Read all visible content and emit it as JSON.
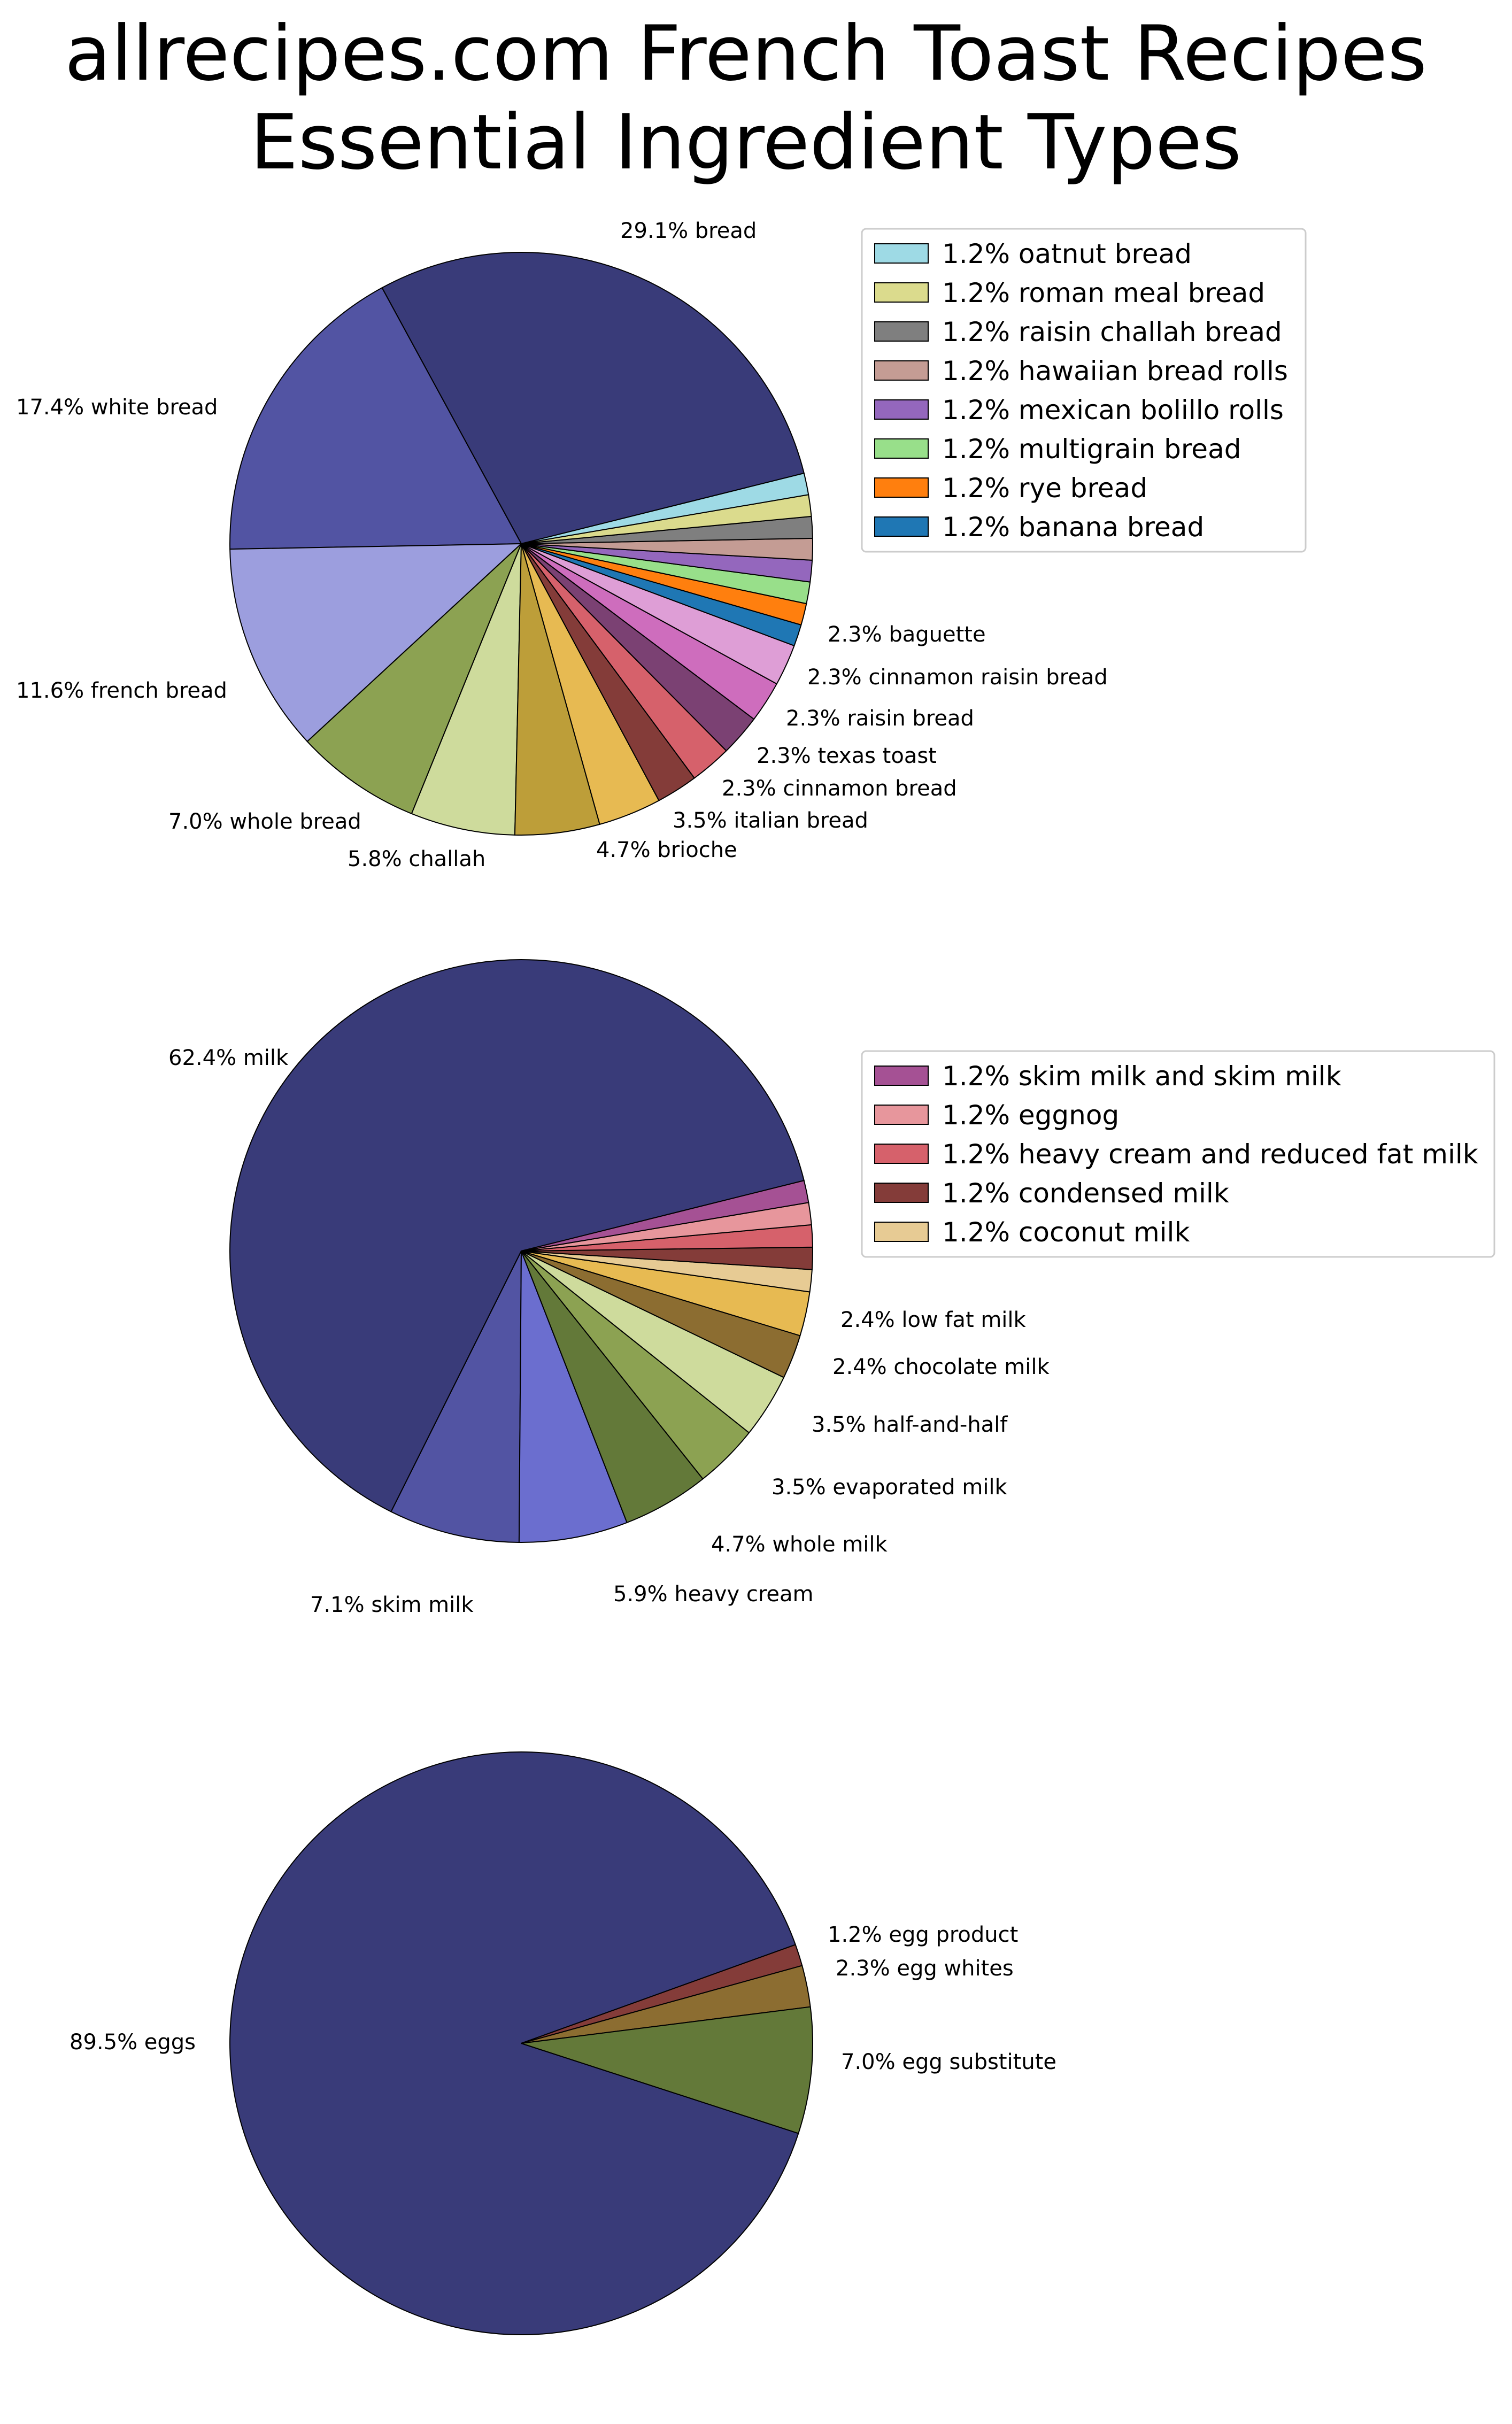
{
  "title": {
    "line1": "allrecipes.com French Toast Recipes",
    "line2": "Essential Ingredient Types"
  },
  "chart_data": [
    {
      "type": "pie",
      "name": "bread",
      "start_angle_deg": 14,
      "direction": "counterclockwise",
      "slices": [
        {
          "label": "bread",
          "value": 29.1,
          "text": "29.1% bread",
          "color": "#393b79",
          "labeled": true
        },
        {
          "label": "white bread",
          "value": 17.4,
          "text": "17.4% white bread",
          "color": "#5254a3",
          "labeled": true
        },
        {
          "label": "french bread",
          "value": 11.6,
          "text": "11.6% french bread",
          "color": "#9c9ede",
          "labeled": true
        },
        {
          "label": "whole bread",
          "value": 7.0,
          "text": "7.0% whole bread",
          "color": "#8ca252",
          "labeled": true
        },
        {
          "label": "challah",
          "value": 5.8,
          "text": "5.8% challah",
          "color": "#cedb9c",
          "labeled": true
        },
        {
          "label": "brioche",
          "value": 4.7,
          "text": "4.7% brioche",
          "color": "#bd9e39",
          "labeled": true
        },
        {
          "label": "italian bread",
          "value": 3.5,
          "text": "3.5% italian bread",
          "color": "#e7ba52",
          "labeled": true
        },
        {
          "label": "cinnamon bread",
          "value": 2.3,
          "text": "2.3% cinnamon bread",
          "color": "#843c39",
          "labeled": true
        },
        {
          "label": "texas toast",
          "value": 2.3,
          "text": "2.3% texas toast",
          "color": "#d6616b",
          "labeled": true
        },
        {
          "label": "raisin bread",
          "value": 2.3,
          "text": "2.3% raisin bread",
          "color": "#7b4173",
          "labeled": true
        },
        {
          "label": "cinnamon raisin bread",
          "value": 2.3,
          "text": "2.3% cinnamon raisin bread",
          "color": "#ce6dbd",
          "labeled": true
        },
        {
          "label": "baguette",
          "value": 2.3,
          "text": "2.3% baguette",
          "color": "#de9ed6",
          "labeled": true
        },
        {
          "label": "banana bread",
          "value": 1.2,
          "text": "1.2% banana bread",
          "color": "#1f77b4",
          "labeled": false
        },
        {
          "label": "rye bread",
          "value": 1.2,
          "text": "1.2% rye bread",
          "color": "#ff7f0e",
          "labeled": false
        },
        {
          "label": "multigrain bread",
          "value": 1.2,
          "text": "1.2% multigrain bread",
          "color": "#98df8a",
          "labeled": false
        },
        {
          "label": "mexican bolillo rolls",
          "value": 1.2,
          "text": "1.2% mexican bolillo rolls",
          "color": "#9467bd",
          "labeled": false
        },
        {
          "label": "hawaiian bread rolls",
          "value": 1.2,
          "text": "1.2% hawaiian bread rolls",
          "color": "#c49c94",
          "labeled": false
        },
        {
          "label": "raisin challah bread",
          "value": 1.2,
          "text": "1.2% raisin challah bread",
          "color": "#7f7f7f",
          "labeled": false
        },
        {
          "label": "roman meal bread",
          "value": 1.2,
          "text": "1.2% roman meal bread",
          "color": "#dbdb8d",
          "labeled": false
        },
        {
          "label": "oatnut bread",
          "value": 1.2,
          "text": "1.2% oatnut bread",
          "color": "#9edae5",
          "labeled": false
        }
      ],
      "legend": [
        "oatnut bread",
        "roman meal bread",
        "raisin challah bread",
        "hawaiian bread rolls",
        "mexican bolillo rolls",
        "multigrain bread",
        "rye bread",
        "banana bread"
      ]
    },
    {
      "type": "pie",
      "name": "milk",
      "start_angle_deg": 14,
      "direction": "counterclockwise",
      "slices": [
        {
          "label": "milk",
          "value": 62.4,
          "text": "62.4% milk",
          "color": "#393b79",
          "labeled": true
        },
        {
          "label": "skim milk",
          "value": 7.1,
          "text": "7.1% skim milk",
          "color": "#5254a3",
          "labeled": true
        },
        {
          "label": "heavy cream",
          "value": 5.9,
          "text": "5.9% heavy cream",
          "color": "#6b6ecf",
          "labeled": true
        },
        {
          "label": "whole milk",
          "value": 4.7,
          "text": "4.7% whole milk",
          "color": "#637939",
          "labeled": true
        },
        {
          "label": "evaporated milk",
          "value": 3.5,
          "text": "3.5% evaporated milk",
          "color": "#8ca252",
          "labeled": true
        },
        {
          "label": "half-and-half",
          "value": 3.5,
          "text": "3.5% half-and-half",
          "color": "#cedb9c",
          "labeled": true
        },
        {
          "label": "chocolate milk",
          "value": 2.4,
          "text": "2.4% chocolate milk",
          "color": "#8c6d31",
          "labeled": true
        },
        {
          "label": "low fat milk",
          "value": 2.4,
          "text": "2.4% low fat milk",
          "color": "#e7ba52",
          "labeled": true
        },
        {
          "label": "coconut milk",
          "value": 1.2,
          "text": "1.2% coconut milk",
          "color": "#e7cb94",
          "labeled": false
        },
        {
          "label": "condensed milk",
          "value": 1.2,
          "text": "1.2% condensed milk",
          "color": "#843c39",
          "labeled": false
        },
        {
          "label": "heavy cream and reduced fat milk",
          "value": 1.2,
          "text": "1.2% heavy cream and reduced fat milk",
          "color": "#d6616b",
          "labeled": false
        },
        {
          "label": "eggnog",
          "value": 1.2,
          "text": "1.2% eggnog",
          "color": "#e7969c",
          "labeled": false
        },
        {
          "label": "skim milk and skim milk",
          "value": 1.2,
          "text": "1.2% skim milk and skim milk",
          "color": "#a55194",
          "labeled": false
        }
      ],
      "legend": [
        "skim milk and skim milk",
        "eggnog",
        "heavy cream and reduced fat milk",
        "condensed milk",
        "coconut milk"
      ]
    },
    {
      "type": "pie",
      "name": "eggs",
      "start_angle_deg": -18,
      "direction": "clockwise",
      "slices": [
        {
          "label": "eggs",
          "value": 89.5,
          "text": "89.5% eggs",
          "color": "#393b79",
          "labeled": true
        },
        {
          "label": "egg product",
          "value": 1.2,
          "text": "1.2% egg product",
          "color": "#843c39",
          "labeled": true
        },
        {
          "label": "egg whites",
          "value": 2.3,
          "text": "2.3% egg whites",
          "color": "#8c6d31",
          "labeled": true
        },
        {
          "label": "egg substitute",
          "value": 7.0,
          "text": "7.0% egg substitute",
          "color": "#637939",
          "labeled": true
        }
      ],
      "legend": []
    }
  ]
}
